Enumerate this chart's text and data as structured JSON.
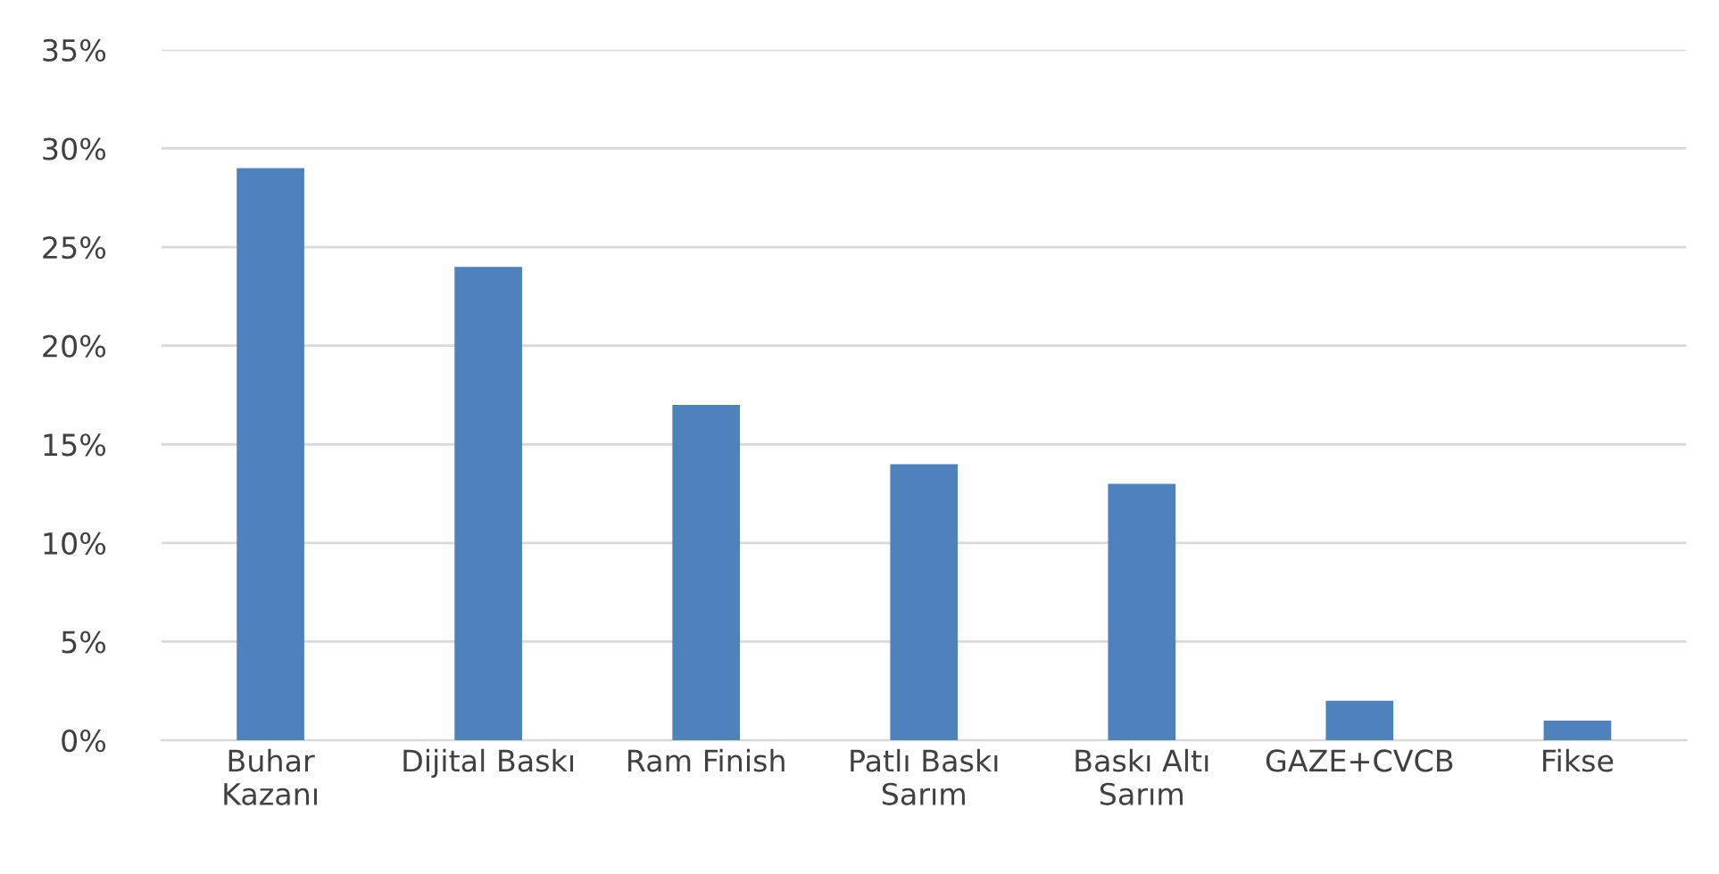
{
  "chart_data": {
    "type": "bar",
    "categories": [
      "Buhar\nKazanı",
      "Dijital Baskı",
      "Ram Finish",
      "Patlı Baskı\nSarım",
      "Baskı Altı\nSarım",
      "GAZE+CVCB",
      "Fikse"
    ],
    "values": [
      29,
      24,
      17,
      14,
      13,
      2,
      1
    ],
    "color": "#4f81bd",
    "ylim": [
      0,
      35
    ],
    "yticks": [
      {
        "value": 0,
        "label": "0%"
      },
      {
        "value": 5,
        "label": "5%"
      },
      {
        "value": 10,
        "label": "10%"
      },
      {
        "value": 15,
        "label": "15%"
      },
      {
        "value": 20,
        "label": "20%"
      },
      {
        "value": 25,
        "label": "25%"
      },
      {
        "value": 30,
        "label": "30%"
      },
      {
        "value": 35,
        "label": "35%"
      }
    ],
    "grid": "y",
    "legend": false
  }
}
